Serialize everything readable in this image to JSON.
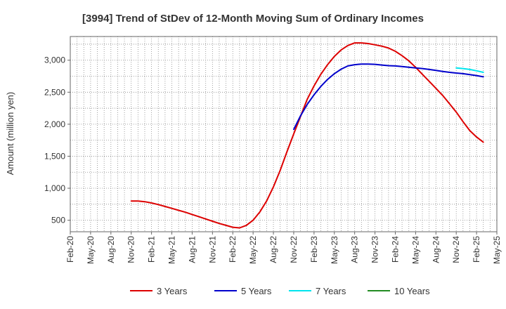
{
  "chart_data": {
    "type": "line",
    "title": "[3994]  Trend of StDev of 12-Month Moving Sum of Ordinary Incomes",
    "xlabel": "",
    "ylabel": "Amount (million yen)",
    "x_ticks": [
      "Feb-20",
      "May-20",
      "Aug-20",
      "Nov-20",
      "Feb-21",
      "May-21",
      "Aug-21",
      "Nov-21",
      "Feb-22",
      "May-22",
      "Aug-22",
      "Nov-22",
      "Feb-23",
      "May-23",
      "Aug-23",
      "Nov-23",
      "Feb-24",
      "May-24",
      "Aug-24",
      "Nov-24",
      "Feb-25",
      "May-25"
    ],
    "y_ticks": [
      500,
      1000,
      1500,
      2000,
      2500,
      3000
    ],
    "y_tick_labels": [
      "500",
      "1,000",
      "1,500",
      "2,000",
      "2,500",
      "3,000"
    ],
    "ylim": [
      320,
      3370
    ],
    "grid": true,
    "legend_position": "bottom",
    "series": [
      {
        "name": "3 Years",
        "color": "#dd0000",
        "points": [
          [
            "Nov-20",
            800
          ],
          [
            "Dec-20",
            800
          ],
          [
            "Jan-21",
            790
          ],
          [
            "Feb-21",
            770
          ],
          [
            "Mar-21",
            745
          ],
          [
            "Apr-21",
            715
          ],
          [
            "May-21",
            685
          ],
          [
            "Jun-21",
            655
          ],
          [
            "Jul-21",
            625
          ],
          [
            "Aug-21",
            590
          ],
          [
            "Sep-21",
            555
          ],
          [
            "Oct-21",
            520
          ],
          [
            "Nov-21",
            485
          ],
          [
            "Dec-21",
            450
          ],
          [
            "Jan-22",
            420
          ],
          [
            "Feb-22",
            390
          ],
          [
            "Mar-22",
            380
          ],
          [
            "Apr-22",
            420
          ],
          [
            "May-22",
            500
          ],
          [
            "Jun-22",
            630
          ],
          [
            "Jul-22",
            800
          ],
          [
            "Aug-22",
            1020
          ],
          [
            "Sep-22",
            1280
          ],
          [
            "Oct-22",
            1570
          ],
          [
            "Nov-22",
            1850
          ],
          [
            "Dec-22",
            2120
          ],
          [
            "Jan-23",
            2390
          ],
          [
            "Feb-23",
            2600
          ],
          [
            "Mar-23",
            2780
          ],
          [
            "Apr-23",
            2930
          ],
          [
            "May-23",
            3060
          ],
          [
            "Jun-23",
            3160
          ],
          [
            "Jul-23",
            3230
          ],
          [
            "Aug-23",
            3270
          ],
          [
            "Sep-23",
            3270
          ],
          [
            "Oct-23",
            3260
          ],
          [
            "Nov-23",
            3240
          ],
          [
            "Dec-23",
            3220
          ],
          [
            "Jan-24",
            3190
          ],
          [
            "Feb-24",
            3140
          ],
          [
            "Mar-24",
            3070
          ],
          [
            "Apr-24",
            2990
          ],
          [
            "May-24",
            2890
          ],
          [
            "Jun-24",
            2780
          ],
          [
            "Jul-24",
            2670
          ],
          [
            "Aug-24",
            2560
          ],
          [
            "Sep-24",
            2450
          ],
          [
            "Oct-24",
            2320
          ],
          [
            "Nov-24",
            2190
          ],
          [
            "Dec-24",
            2040
          ],
          [
            "Jan-25",
            1900
          ],
          [
            "Feb-25",
            1800
          ],
          [
            "Mar-25",
            1720
          ]
        ]
      },
      {
        "name": "5 Years",
        "color": "#0000cc",
        "points": [
          [
            "Nov-22",
            1920
          ],
          [
            "Dec-22",
            2130
          ],
          [
            "Jan-23",
            2310
          ],
          [
            "Feb-23",
            2460
          ],
          [
            "Mar-23",
            2590
          ],
          [
            "Apr-23",
            2700
          ],
          [
            "May-23",
            2790
          ],
          [
            "Jun-23",
            2860
          ],
          [
            "Jul-23",
            2910
          ],
          [
            "Aug-23",
            2930
          ],
          [
            "Sep-23",
            2940
          ],
          [
            "Oct-23",
            2940
          ],
          [
            "Nov-23",
            2935
          ],
          [
            "Dec-23",
            2925
          ],
          [
            "Jan-24",
            2915
          ],
          [
            "Feb-24",
            2910
          ],
          [
            "Mar-24",
            2900
          ],
          [
            "Apr-24",
            2890
          ],
          [
            "May-24",
            2880
          ],
          [
            "Jun-24",
            2870
          ],
          [
            "Jul-24",
            2855
          ],
          [
            "Aug-24",
            2840
          ],
          [
            "Sep-24",
            2825
          ],
          [
            "Oct-24",
            2810
          ],
          [
            "Nov-24",
            2800
          ],
          [
            "Dec-24",
            2790
          ],
          [
            "Jan-25",
            2775
          ],
          [
            "Feb-25",
            2760
          ],
          [
            "Mar-25",
            2740
          ]
        ]
      },
      {
        "name": "7 Years",
        "color": "#00e5ee",
        "points": [
          [
            "Nov-24",
            2880
          ],
          [
            "Dec-24",
            2870
          ],
          [
            "Jan-25",
            2855
          ],
          [
            "Feb-25",
            2835
          ],
          [
            "Mar-25",
            2810
          ]
        ]
      },
      {
        "name": "10 Years",
        "color": "#228b22",
        "points": []
      }
    ]
  }
}
